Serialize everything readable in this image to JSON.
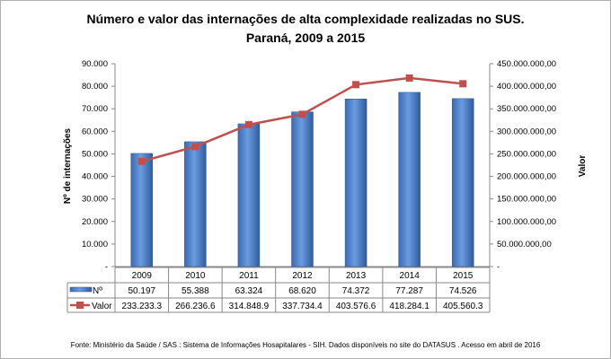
{
  "chart_data": {
    "type": "bar+line",
    "title": "Número e valor das internações de alta complexidade realizadas no SUS.",
    "subtitle": "Paraná, 2009 a 2015",
    "categories": [
      "2009",
      "2010",
      "2011",
      "2012",
      "2013",
      "2014",
      "2015"
    ],
    "ylabel": "Nº de internações",
    "y2label": "Valor",
    "ylim": [
      0,
      90000
    ],
    "y2lim": [
      0,
      450000000
    ],
    "yticks": [
      "-",
      "10.000",
      "20.000",
      "30.000",
      "40.000",
      "50.000",
      "60.000",
      "70.000",
      "80.000",
      "90.000"
    ],
    "y2ticks": [
      "-",
      "50.000.000,00",
      "100.000.000,00",
      "150.000.000,00",
      "200.000.000,00",
      "250.000.000,00",
      "300.000.000,00",
      "350.000.000,00",
      "400.000.000,00",
      "450.000.000,00"
    ],
    "grid": false,
    "legend": "data-table",
    "series": [
      {
        "name": "Nº",
        "type": "bar",
        "axis": "left",
        "color": "#4F81BD",
        "values": [
          50197,
          55388,
          63324,
          68620,
          74372,
          77287,
          74526
        ],
        "labels": [
          "50.197",
          "55.388",
          "63.324",
          "68.620",
          "74.372",
          "77.287",
          "74.526"
        ]
      },
      {
        "name": "Valor",
        "type": "line",
        "axis": "right",
        "color": "#C0504D",
        "values": [
          233233300,
          266236600,
          314848900,
          337734400,
          403576600,
          418284100,
          405560300
        ],
        "labels": [
          "233.233.3",
          "266.236.6",
          "314.848.9",
          "337.734.4",
          "403.576.6",
          "418.284.1",
          "405.560.3"
        ]
      }
    ]
  },
  "footer": "Fonte:  Ministério da Saúde / SAS : Sistema de Informações Hosapitalares - SIH. Dados disponíveis no site do DATASUS . Acesso em abril de 2016"
}
